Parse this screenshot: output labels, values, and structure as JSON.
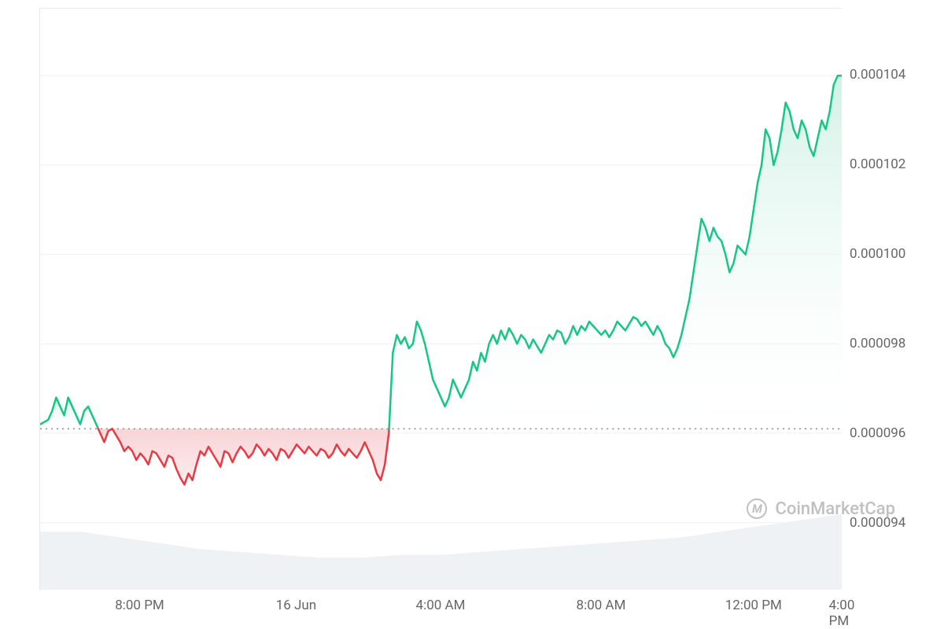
{
  "chart": {
    "type": "line",
    "baseline": 9.61e-05,
    "ylim": [
      9.25e-05,
      0.0001055
    ],
    "yticks": [
      9.4e-05,
      9.6e-05,
      9.8e-05,
      0.0001,
      0.000102,
      0.000104
    ],
    "ylabels": [
      "0.000094",
      "0.000096",
      "0.000098",
      "0.000100",
      "0.000102",
      "0.000104"
    ],
    "xticks": [
      0.125,
      0.32,
      0.5,
      0.7,
      0.89,
      1.0
    ],
    "xlabels": [
      "8:00 PM",
      "16 Jun",
      "4:00 AM",
      "8:00 AM",
      "12:00 PM",
      "4:00 PM"
    ],
    "colors": {
      "line_up": "#16c784",
      "line_down": "#ea3943",
      "fill_up": "#cdf0e3",
      "fill_down": "#f8d0d3",
      "fill_up_bottom": "#ffffff",
      "grid": "#f0f0f0",
      "baseline": "#888888",
      "text": "#666666",
      "volume_fill": "#eff2f5",
      "watermark": "#c0c0c0",
      "background": "#ffffff"
    },
    "line_width": 2.5,
    "data": [
      [
        0.0,
        9.62e-05
      ],
      [
        0.01,
        9.63e-05
      ],
      [
        0.015,
        9.65e-05
      ],
      [
        0.02,
        9.68e-05
      ],
      [
        0.025,
        9.66e-05
      ],
      [
        0.03,
        9.64e-05
      ],
      [
        0.035,
        9.68e-05
      ],
      [
        0.04,
        9.66e-05
      ],
      [
        0.045,
        9.64e-05
      ],
      [
        0.05,
        9.62e-05
      ],
      [
        0.055,
        9.65e-05
      ],
      [
        0.06,
        9.66e-05
      ],
      [
        0.065,
        9.64e-05
      ],
      [
        0.07,
        9.62e-05
      ],
      [
        0.075,
        9.6e-05
      ],
      [
        0.08,
        9.58e-05
      ],
      [
        0.085,
        9.605e-05
      ],
      [
        0.09,
        9.61e-05
      ],
      [
        0.095,
        9.595e-05
      ],
      [
        0.1,
        9.58e-05
      ],
      [
        0.105,
        9.56e-05
      ],
      [
        0.11,
        9.57e-05
      ],
      [
        0.115,
        9.56e-05
      ],
      [
        0.12,
        9.54e-05
      ],
      [
        0.125,
        9.555e-05
      ],
      [
        0.13,
        9.545e-05
      ],
      [
        0.135,
        9.53e-05
      ],
      [
        0.14,
        9.56e-05
      ],
      [
        0.145,
        9.555e-05
      ],
      [
        0.15,
        9.54e-05
      ],
      [
        0.155,
        9.525e-05
      ],
      [
        0.16,
        9.55e-05
      ],
      [
        0.165,
        9.545e-05
      ],
      [
        0.17,
        9.52e-05
      ],
      [
        0.175,
        9.5e-05
      ],
      [
        0.18,
        9.485e-05
      ],
      [
        0.185,
        9.51e-05
      ],
      [
        0.19,
        9.495e-05
      ],
      [
        0.195,
        9.53e-05
      ],
      [
        0.2,
        9.56e-05
      ],
      [
        0.205,
        9.55e-05
      ],
      [
        0.21,
        9.57e-05
      ],
      [
        0.215,
        9.555e-05
      ],
      [
        0.22,
        9.54e-05
      ],
      [
        0.225,
        9.525e-05
      ],
      [
        0.23,
        9.56e-05
      ],
      [
        0.235,
        9.555e-05
      ],
      [
        0.24,
        9.535e-05
      ],
      [
        0.245,
        9.555e-05
      ],
      [
        0.25,
        9.57e-05
      ],
      [
        0.255,
        9.56e-05
      ],
      [
        0.26,
        9.545e-05
      ],
      [
        0.265,
        9.555e-05
      ],
      [
        0.27,
        9.575e-05
      ],
      [
        0.275,
        9.565e-05
      ],
      [
        0.28,
        9.55e-05
      ],
      [
        0.285,
        9.565e-05
      ],
      [
        0.29,
        9.555e-05
      ],
      [
        0.295,
        9.54e-05
      ],
      [
        0.3,
        9.565e-05
      ],
      [
        0.305,
        9.56e-05
      ],
      [
        0.31,
        9.545e-05
      ],
      [
        0.315,
        9.56e-05
      ],
      [
        0.32,
        9.575e-05
      ],
      [
        0.325,
        9.565e-05
      ],
      [
        0.33,
        9.555e-05
      ],
      [
        0.335,
        9.57e-05
      ],
      [
        0.34,
        9.56e-05
      ],
      [
        0.345,
        9.55e-05
      ],
      [
        0.35,
        9.565e-05
      ],
      [
        0.355,
        9.56e-05
      ],
      [
        0.36,
        9.545e-05
      ],
      [
        0.365,
        9.555e-05
      ],
      [
        0.37,
        9.575e-05
      ],
      [
        0.375,
        9.56e-05
      ],
      [
        0.38,
        9.55e-05
      ],
      [
        0.385,
        9.565e-05
      ],
      [
        0.39,
        9.555e-05
      ],
      [
        0.395,
        9.545e-05
      ],
      [
        0.4,
        9.56e-05
      ],
      [
        0.405,
        9.58e-05
      ],
      [
        0.41,
        9.56e-05
      ],
      [
        0.415,
        9.54e-05
      ],
      [
        0.42,
        9.51e-05
      ],
      [
        0.425,
        9.495e-05
      ],
      [
        0.43,
        9.53e-05
      ],
      [
        0.435,
        9.6e-05
      ],
      [
        0.44,
        9.78e-05
      ],
      [
        0.445,
        9.82e-05
      ],
      [
        0.45,
        9.8e-05
      ],
      [
        0.455,
        9.815e-05
      ],
      [
        0.46,
        9.79e-05
      ],
      [
        0.465,
        9.8e-05
      ],
      [
        0.47,
        9.85e-05
      ],
      [
        0.475,
        9.83e-05
      ],
      [
        0.48,
        9.8e-05
      ],
      [
        0.485,
        9.76e-05
      ],
      [
        0.49,
        9.72e-05
      ],
      [
        0.495,
        9.7e-05
      ],
      [
        0.5,
        9.68e-05
      ],
      [
        0.505,
        9.66e-05
      ],
      [
        0.51,
        9.68e-05
      ],
      [
        0.515,
        9.72e-05
      ],
      [
        0.52,
        9.7e-05
      ],
      [
        0.525,
        9.68e-05
      ],
      [
        0.53,
        9.7e-05
      ],
      [
        0.535,
        9.72e-05
      ],
      [
        0.54,
        9.76e-05
      ],
      [
        0.545,
        9.74e-05
      ],
      [
        0.55,
        9.78e-05
      ],
      [
        0.555,
        9.76e-05
      ],
      [
        0.56,
        9.8e-05
      ],
      [
        0.565,
        9.82e-05
      ],
      [
        0.57,
        9.8e-05
      ],
      [
        0.575,
        9.83e-05
      ],
      [
        0.58,
        9.81e-05
      ],
      [
        0.585,
        9.835e-05
      ],
      [
        0.59,
        9.82e-05
      ],
      [
        0.595,
        9.8e-05
      ],
      [
        0.6,
        9.82e-05
      ],
      [
        0.605,
        9.81e-05
      ],
      [
        0.61,
        9.79e-05
      ],
      [
        0.615,
        9.81e-05
      ],
      [
        0.62,
        9.795e-05
      ],
      [
        0.625,
        9.78e-05
      ],
      [
        0.63,
        9.8e-05
      ],
      [
        0.635,
        9.82e-05
      ],
      [
        0.64,
        9.81e-05
      ],
      [
        0.645,
        9.83e-05
      ],
      [
        0.65,
        9.825e-05
      ],
      [
        0.655,
        9.8e-05
      ],
      [
        0.66,
        9.815e-05
      ],
      [
        0.665,
        9.84e-05
      ],
      [
        0.67,
        9.82e-05
      ],
      [
        0.675,
        9.84e-05
      ],
      [
        0.68,
        9.83e-05
      ],
      [
        0.685,
        9.85e-05
      ],
      [
        0.69,
        9.84e-05
      ],
      [
        0.695,
        9.83e-05
      ],
      [
        0.7,
        9.82e-05
      ],
      [
        0.705,
        9.83e-05
      ],
      [
        0.71,
        9.815e-05
      ],
      [
        0.715,
        9.83e-05
      ],
      [
        0.72,
        9.85e-05
      ],
      [
        0.725,
        9.84e-05
      ],
      [
        0.73,
        9.83e-05
      ],
      [
        0.735,
        9.845e-05
      ],
      [
        0.74,
        9.86e-05
      ],
      [
        0.745,
        9.855e-05
      ],
      [
        0.75,
        9.84e-05
      ],
      [
        0.755,
        9.85e-05
      ],
      [
        0.76,
        9.835e-05
      ],
      [
        0.765,
        9.82e-05
      ],
      [
        0.77,
        9.84e-05
      ],
      [
        0.775,
        9.825e-05
      ],
      [
        0.78,
        9.8e-05
      ],
      [
        0.785,
        9.79e-05
      ],
      [
        0.79,
        9.77e-05
      ],
      [
        0.795,
        9.79e-05
      ],
      [
        0.8,
        9.82e-05
      ],
      [
        0.805,
        9.86e-05
      ],
      [
        0.81,
        9.9e-05
      ],
      [
        0.815,
        9.96e-05
      ],
      [
        0.82,
        0.0001002
      ],
      [
        0.825,
        0.0001008
      ],
      [
        0.83,
        0.0001006
      ],
      [
        0.835,
        0.0001003
      ],
      [
        0.84,
        0.0001006
      ],
      [
        0.845,
        0.0001004
      ],
      [
        0.85,
        0.0001003
      ],
      [
        0.855,
        0.0001
      ],
      [
        0.86,
        9.96e-05
      ],
      [
        0.865,
        9.98e-05
      ],
      [
        0.87,
        0.0001002
      ],
      [
        0.875,
        0.0001001
      ],
      [
        0.88,
        0.0001
      ],
      [
        0.885,
        0.0001004
      ],
      [
        0.89,
        0.000101
      ],
      [
        0.895,
        0.0001016
      ],
      [
        0.9,
        0.000102
      ],
      [
        0.905,
        0.0001028
      ],
      [
        0.91,
        0.0001026
      ],
      [
        0.915,
        0.000102
      ],
      [
        0.92,
        0.0001023
      ],
      [
        0.925,
        0.0001028
      ],
      [
        0.93,
        0.0001034
      ],
      [
        0.935,
        0.0001032
      ],
      [
        0.94,
        0.0001028
      ],
      [
        0.945,
        0.0001026
      ],
      [
        0.95,
        0.000103
      ],
      [
        0.955,
        0.0001028
      ],
      [
        0.96,
        0.0001024
      ],
      [
        0.965,
        0.0001022
      ],
      [
        0.97,
        0.0001026
      ],
      [
        0.975,
        0.000103
      ],
      [
        0.98,
        0.0001028
      ],
      [
        0.985,
        0.0001032
      ],
      [
        0.99,
        0.0001038
      ],
      [
        0.995,
        0.000104
      ],
      [
        1.0,
        0.000104
      ]
    ],
    "volume_data": [
      [
        0.0,
        0.1
      ],
      [
        0.05,
        0.1
      ],
      [
        0.1,
        0.09
      ],
      [
        0.15,
        0.08
      ],
      [
        0.2,
        0.07
      ],
      [
        0.25,
        0.065
      ],
      [
        0.3,
        0.06
      ],
      [
        0.35,
        0.055
      ],
      [
        0.4,
        0.055
      ],
      [
        0.45,
        0.06
      ],
      [
        0.5,
        0.06
      ],
      [
        0.55,
        0.065
      ],
      [
        0.6,
        0.07
      ],
      [
        0.65,
        0.075
      ],
      [
        0.7,
        0.08
      ],
      [
        0.75,
        0.085
      ],
      [
        0.8,
        0.09
      ],
      [
        0.85,
        0.1
      ],
      [
        0.9,
        0.11
      ],
      [
        0.95,
        0.12
      ],
      [
        1.0,
        0.13
      ]
    ]
  },
  "watermark": {
    "text": "CoinMarketCap",
    "icon": "M"
  }
}
